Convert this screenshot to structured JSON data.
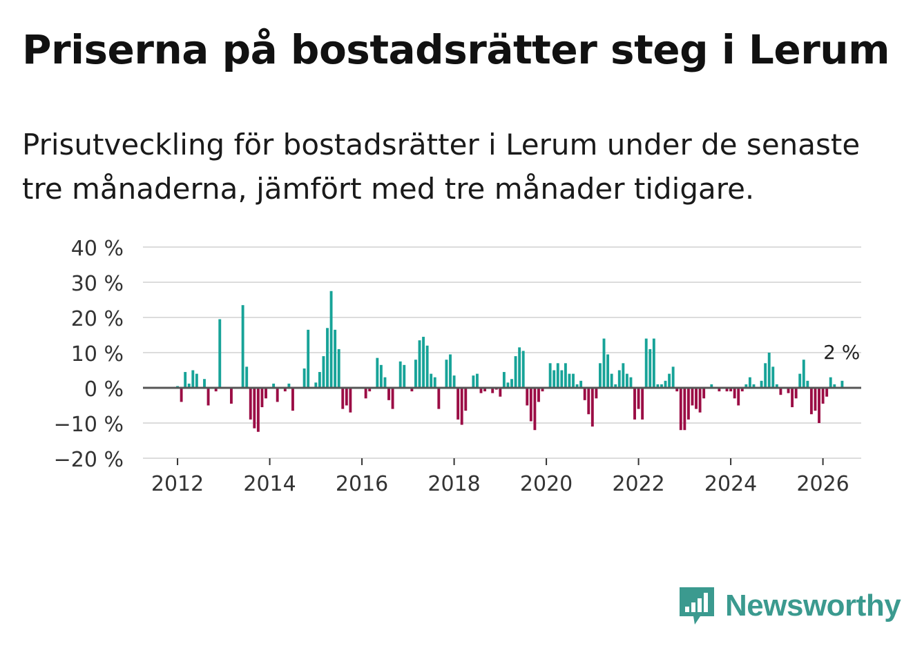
{
  "title": "Priserna på bostadsrätter steg i Lerum",
  "subtitle": "Prisutveckling för bostadsrätter i Lerum under de senaste tre månaderna, jämfört med tre månader tidigare.",
  "colors": {
    "positive": "#17a398",
    "negative": "#9b0d45",
    "gridline": "#dcdcdc",
    "zero_line": "#555555",
    "logo": "#3b9a8f"
  },
  "logo": {
    "text": "Newsworthy",
    "icon": "newsworthy-chart-bubble-icon"
  },
  "chart_data": {
    "type": "bar",
    "title": "Priserna på bostadsrätter steg i Lerum",
    "subtitle": "Prisutveckling för bostadsrätter i Lerum under de senaste tre månaderna, jämfört med tre månader tidigare.",
    "xlabel": "",
    "ylabel": "",
    "unit": "%",
    "ylim": [
      -20,
      40
    ],
    "yticks": [
      -20,
      -10,
      0,
      10,
      20,
      30,
      40
    ],
    "ytick_labels": [
      "−20 %",
      "−10 %",
      "0 %",
      "10 %",
      "20 %",
      "30 %",
      "40 %"
    ],
    "xlim": [
      2011.25,
      2026.83
    ],
    "xticks": [
      2012,
      2014,
      2016,
      2018,
      2020,
      2022,
      2024,
      2026
    ],
    "xtick_labels": [
      "2012",
      "2014",
      "2016",
      "2018",
      "2020",
      "2022",
      "2024",
      "2026"
    ],
    "grid": true,
    "start": "2012-01",
    "frequency": "monthly",
    "last_value_label": "2 %",
    "values": [
      0.5,
      -4,
      4.5,
      1.2,
      5,
      4,
      0,
      2.5,
      -5,
      0,
      -1,
      19.5,
      0,
      0,
      -4.5,
      0,
      0,
      23.5,
      6,
      -9,
      -11.5,
      -12.5,
      -5.5,
      -3,
      0,
      1.2,
      -4,
      0,
      -1,
      1.2,
      -6.5,
      0,
      0,
      5.5,
      16.5,
      0,
      1.5,
      4.5,
      9,
      17,
      27.5,
      16.5,
      11,
      -6,
      -5,
      -7,
      0,
      0,
      0,
      -3,
      -1,
      0,
      8.5,
      6.5,
      3,
      -3.5,
      -6,
      0,
      7.5,
      6.5,
      0,
      -1,
      8,
      13.5,
      14.5,
      12,
      4,
      3,
      -6,
      0,
      8,
      9.5,
      3.5,
      -9,
      -10.5,
      -6.5,
      0,
      3.5,
      4,
      -1.5,
      -1,
      0,
      -1.5,
      -0.5,
      -2.5,
      4.5,
      1.5,
      2.5,
      9,
      11.5,
      10.5,
      -5,
      -9.5,
      -12,
      -4,
      -1,
      0,
      7,
      5,
      7,
      5,
      7,
      4,
      4,
      1,
      2,
      -3.5,
      -7.5,
      -11,
      -3,
      7,
      14,
      9.5,
      4,
      1,
      5,
      7,
      4,
      3,
      -9,
      -6,
      -9,
      14,
      11,
      14,
      1,
      1,
      2,
      4,
      6,
      -1,
      -12,
      -12,
      -9,
      -5,
      -6,
      -7,
      -3,
      0,
      1,
      0,
      -1,
      0,
      -1,
      -1,
      -3,
      -5,
      -1,
      1,
      3,
      1,
      0,
      2,
      7,
      10,
      6,
      1,
      -2,
      0,
      -1.5,
      -5.5,
      -3,
      4,
      8,
      2,
      -7.5,
      -6.5,
      -10,
      -4.5,
      -2.5,
      3,
      1,
      0,
      2
    ]
  }
}
